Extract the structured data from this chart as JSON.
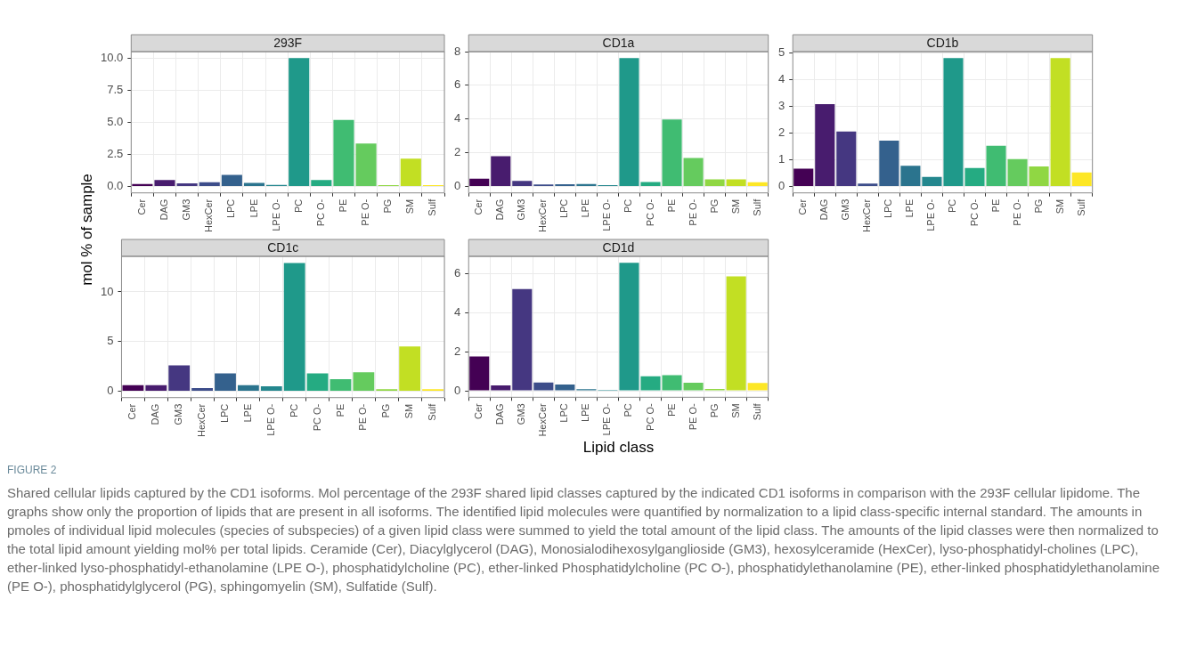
{
  "chart_data": [
    {
      "type": "bar",
      "title": "293F",
      "ylabel": "mol % of sample",
      "categories": [
        "Cer",
        "DAG",
        "GM3",
        "HexCer",
        "LPC",
        "LPE",
        "LPE O-",
        "PC",
        "PC O-",
        "PE",
        "PE O-",
        "PG",
        "SM",
        "Sulf"
      ],
      "values": [
        0.2,
        0.5,
        0.25,
        0.33,
        0.9,
        0.28,
        0.12,
        10.05,
        0.5,
        5.2,
        3.37,
        0.1,
        2.18,
        0.1
      ],
      "colors": [
        "#440154",
        "#481c6e",
        "#453781",
        "#3d4d8a",
        "#34618d",
        "#2b748e",
        "#24878e",
        "#1f998a",
        "#25ab82",
        "#40bc72",
        "#65cb5e",
        "#90d743",
        "#c2df23",
        "#fde725"
      ],
      "ylim": [
        -0.5,
        10.55
      ],
      "yticks": [
        {
          "value": 0,
          "label": "0.0"
        },
        {
          "value": 2.5,
          "label": "2.5"
        },
        {
          "value": 5,
          "label": "5.0"
        },
        {
          "value": 7.5,
          "label": "7.5"
        },
        {
          "value": 10,
          "label": "10.0"
        }
      ],
      "grid": true
    },
    {
      "type": "bar",
      "title": "CD1a",
      "categories": [
        "Cer",
        "DAG",
        "GM3",
        "HexCer",
        "LPC",
        "LPE",
        "LPE O-",
        "PC",
        "PC O-",
        "PE",
        "PE O-",
        "PG",
        "SM",
        "Sulf"
      ],
      "values": [
        0.46,
        1.8,
        0.33,
        0.12,
        0.13,
        0.15,
        0.08,
        7.62,
        0.27,
        3.98,
        1.69,
        0.42,
        0.42,
        0.25
      ],
      "colors": [
        "#440154",
        "#481c6e",
        "#453781",
        "#3d4d8a",
        "#34618d",
        "#2b748e",
        "#24878e",
        "#1f998a",
        "#25ab82",
        "#40bc72",
        "#65cb5e",
        "#90d743",
        "#c2df23",
        "#fde725"
      ],
      "ylim": [
        -0.38,
        8.0
      ],
      "yticks": [
        0,
        2,
        4,
        6,
        8
      ],
      "grid": true
    },
    {
      "type": "bar",
      "title": "CD1b",
      "categories": [
        "Cer",
        "DAG",
        "GM3",
        "HexCer",
        "LPC",
        "LPE",
        "LPE O-",
        "PC",
        "PC O-",
        "PE",
        "PE O-",
        "PG",
        "SM",
        "Sulf"
      ],
      "values": [
        0.67,
        3.09,
        2.06,
        0.11,
        1.72,
        0.78,
        0.36,
        4.82,
        0.69,
        1.53,
        1.03,
        0.75,
        4.82,
        0.53
      ],
      "colors": [
        "#440154",
        "#481c6e",
        "#453781",
        "#3d4d8a",
        "#34618d",
        "#2b748e",
        "#24878e",
        "#1f998a",
        "#25ab82",
        "#40bc72",
        "#65cb5e",
        "#90d743",
        "#c2df23",
        "#fde725"
      ],
      "ylim": [
        -0.24,
        5.06
      ],
      "yticks": [
        0,
        1,
        2,
        3,
        4,
        5
      ],
      "grid": true
    },
    {
      "type": "bar",
      "title": "CD1c",
      "categories": [
        "Cer",
        "DAG",
        "GM3",
        "HexCer",
        "LPC",
        "LPE",
        "LPE O-",
        "PC",
        "PC O-",
        "PE",
        "PE O-",
        "PG",
        "SM",
        "Sulf"
      ],
      "values": [
        0.6,
        0.6,
        2.6,
        0.3,
        1.8,
        0.6,
        0.5,
        12.9,
        1.8,
        1.2,
        1.9,
        0.2,
        4.5,
        0.2
      ],
      "colors": [
        "#440154",
        "#481c6e",
        "#453781",
        "#3d4d8a",
        "#34618d",
        "#2b748e",
        "#24878e",
        "#1f998a",
        "#25ab82",
        "#40bc72",
        "#65cb5e",
        "#90d743",
        "#c2df23",
        "#fde725"
      ],
      "ylim": [
        -0.65,
        13.58
      ],
      "yticks": [
        0,
        5,
        10
      ],
      "grid": true
    },
    {
      "type": "bar",
      "title": "CD1d",
      "xlabel": "Lipid class",
      "categories": [
        "Cer",
        "DAG",
        "GM3",
        "HexCer",
        "LPC",
        "LPE",
        "LPE O-",
        "PC",
        "PC O-",
        "PE",
        "PE O-",
        "PG",
        "SM",
        "Sulf"
      ],
      "values": [
        1.76,
        0.28,
        5.23,
        0.43,
        0.33,
        0.08,
        0.05,
        6.58,
        0.75,
        0.8,
        0.42,
        0.1,
        5.88,
        0.4
      ],
      "colors": [
        "#440154",
        "#481c6e",
        "#453781",
        "#3d4d8a",
        "#34618d",
        "#2b748e",
        "#24878e",
        "#1f998a",
        "#25ab82",
        "#40bc72",
        "#65cb5e",
        "#90d743",
        "#c2df23",
        "#fde725"
      ],
      "ylim": [
        -0.33,
        6.91
      ],
      "yticks": [
        0,
        2,
        4,
        6
      ],
      "grid": true,
      "annotations": [
        "FIGURE 2",
        "Shared cellular lipids captured by the CD1 isoforms. Mol percentage of the 293F shared lipid classes captured by the indicated CD1 isoforms in comparison with the 293F cellular lipidome. The graphs show only the proportion of lipids that are present in all isoforms. The identified lipid molecules were quantified by normalization to a lipid class-specific internal standard. The amounts in pmoles of individual lipid molecules (species of subspecies) of a given lipid class were summed to yield the total amount of the lipid class. The amounts of the lipid classes were then normalized to the total lipid amount yielding mol% per total lipids. Ceramide (Cer), Diacylglycerol (DAG), Monosialodihexosylganglioside (GM3), hexosylceramide (HexCer), lyso-phosphatidyl-cholines (LPC), ether-linked lyso-phosphatidyl-ethanolamine (LPE O-), phosphatidylcholine (PC), ether-linked Phosphatidylcholine (PC O-), phosphatidylethanolamine (PE), ether-linked phosphatidylethanolamine (PE O-), phosphatidylglycerol (PG), sphingomyelin (SM), Sulfatide (Sulf)."
      ]
    }
  ]
}
